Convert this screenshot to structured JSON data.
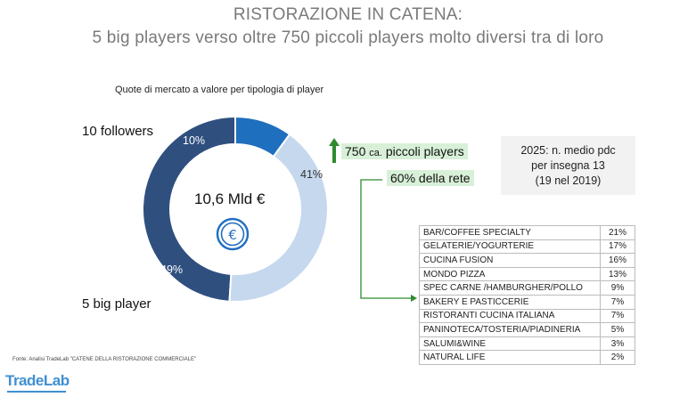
{
  "header": {
    "title_line1": "RISTORAZIONE IN CATENA:",
    "title_line2": "5 big players verso oltre 750 piccoli players molto diversi tra di loro"
  },
  "chart_data": [
    {
      "type": "pie",
      "subtitle": "Quote di mercato a valore per tipologia di player",
      "center_label": "10,6 Mld €",
      "unit": "%",
      "slices": [
        {
          "label": "5 big player",
          "value": 49,
          "display": "49%",
          "color": "#2f4f7f"
        },
        {
          "label": "10 followers",
          "value": 10,
          "display": "10%",
          "color": "#1f6fbf"
        },
        {
          "label": "",
          "value": 41,
          "display": "41%",
          "color": "#c5d8ee"
        }
      ]
    },
    {
      "type": "table",
      "rows": [
        {
          "name": "BAR/COFFEE SPECIALTY",
          "value": "21%"
        },
        {
          "name": "GELATERIE/YOGURTERIE",
          "value": "17%"
        },
        {
          "name": "CUCINA FUSION",
          "value": "16%"
        },
        {
          "name": "MONDO PIZZA",
          "value": "13%"
        },
        {
          "name": "SPEC CARNE /HAMBURGHER/POLLO",
          "value": "9%"
        },
        {
          "name": "BAKERY E PASTICCERIE",
          "value": "7%"
        },
        {
          "name": "RISTORANTI CUCINA ITALIANA",
          "value": "7%"
        },
        {
          "name": "PANINOTECA/TOSTERIA/PIADINERIA",
          "value": "5%"
        },
        {
          "name": "SALUMI&WINE",
          "value": "3%"
        },
        {
          "name": "NATURAL LIFE",
          "value": "2%"
        }
      ]
    }
  ],
  "labels": {
    "followers": "10 followers",
    "big": "5 big player"
  },
  "callouts": {
    "small_players_main": "750",
    "small_players_ca": "ca.",
    "small_players_rest": "piccoli players",
    "network_share": "60% della rete"
  },
  "info_box": {
    "line1": "2025: n. medio pdc",
    "line2": "per insegna 13",
    "line3": "(19 nel 2019)"
  },
  "footer": {
    "source": "Fonte: Analisi TradeLab \"CATENE DELLA RISTORAZIONE COMMERCIALE\"",
    "logo": "TradeLab"
  },
  "colors": {
    "green": "#2e8b2e",
    "green_bg": "#d8f0d8",
    "euro_icon": "#1f6fbf"
  },
  "icons": {
    "center_icon": "euro-coin-icon",
    "arrow": "up-arrow-icon"
  }
}
